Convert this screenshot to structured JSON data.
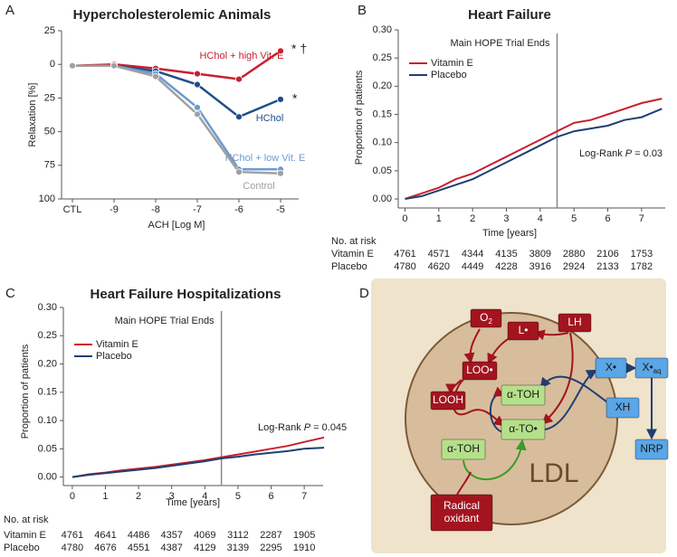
{
  "chart_data": [
    {
      "type": "line",
      "panel_label": "A",
      "title": "Hypercholesterolemic Animals",
      "x_label": "ACH [Log M]",
      "y_label": "Relaxation [%]",
      "categories": [
        "CTL",
        "-9",
        "-8",
        "-7",
        "-6",
        "-5"
      ],
      "ylim": [
        -25,
        100
      ],
      "y_inverted": true,
      "yticks": [
        {
          "value": -25,
          "label": "25"
        },
        0,
        25,
        50,
        75,
        100
      ],
      "markers": true,
      "series": [
        {
          "name": "HChol + high Vit. E",
          "color": "#c8202f",
          "values": [
            1,
            0,
            3,
            7,
            11,
            -10
          ]
        },
        {
          "name": "HChol",
          "color": "#1f4e8c",
          "values": [
            1,
            1,
            5,
            15,
            39,
            26
          ]
        },
        {
          "name": "HChol + low Vit. E",
          "color": "#6b9bd2",
          "values": [
            1,
            1,
            7,
            32,
            78,
            78
          ]
        },
        {
          "name": "Control",
          "color": "#a0a0a0",
          "values": [
            1,
            1,
            9,
            37,
            80,
            81
          ]
        }
      ],
      "annotations": [
        {
          "text": "* †"
        },
        {
          "text": "*"
        }
      ]
    },
    {
      "type": "line",
      "panel_label": "B",
      "title": "Heart Failure",
      "x_label": "Time [years]",
      "y_label": "Proportion of patients",
      "x": [
        0,
        0.5,
        1,
        1.5,
        2,
        2.5,
        3,
        3.5,
        4,
        4.5,
        5,
        5.5,
        6,
        6.5,
        7,
        7.6
      ],
      "xlim": [
        -0.2,
        7.7
      ],
      "xticks": [
        0,
        1,
        2,
        3,
        4,
        5,
        6,
        7
      ],
      "ylim": [
        -0.016,
        0.3
      ],
      "yticks": [
        {
          "value": 0,
          "label": "0.00"
        },
        0.05,
        {
          "value": 0.1,
          "label": "0.10"
        },
        0.15,
        {
          "value": 0.2,
          "label": "0.20"
        },
        0.25,
        {
          "value": 0.3,
          "label": "0.30"
        }
      ],
      "legend": "upper left",
      "series": [
        {
          "name": "Vitamin E",
          "color": "#c8202f",
          "values": [
            0,
            0.01,
            0.02,
            0.035,
            0.045,
            0.06,
            0.075,
            0.09,
            0.105,
            0.12,
            0.135,
            0.14,
            0.15,
            0.16,
            0.17,
            0.178
          ]
        },
        {
          "name": "Placebo",
          "color": "#1f3f73",
          "values": [
            0,
            0.005,
            0.015,
            0.025,
            0.035,
            0.05,
            0.065,
            0.08,
            0.095,
            0.11,
            0.12,
            0.125,
            0.13,
            0.14,
            0.145,
            0.16
          ]
        }
      ],
      "annotations": [
        {
          "text": "Main HOPE Trial Ends",
          "x": 4.5
        }
      ],
      "log_rank": {
        "prefix": "Log-Rank ",
        "italic": "P",
        "suffix": " = 0.03"
      },
      "risk_table": {
        "title": "No. at risk",
        "rows": [
          {
            "label": "Vitamin E",
            "values": [
              4761,
              4571,
              4344,
              4135,
              3809,
              2880,
              2106,
              1753
            ]
          },
          {
            "label": "Placebo",
            "values": [
              4780,
              4620,
              4449,
              4228,
              3916,
              2924,
              2133,
              1782
            ]
          }
        ]
      }
    },
    {
      "type": "line",
      "panel_label": "C",
      "title": "Heart Failure Hospitalizations",
      "x_label": "Time [years]",
      "y_label": "Proportion of patients",
      "x": [
        0,
        0.5,
        1,
        1.5,
        2,
        2.5,
        3,
        3.5,
        4,
        4.5,
        5,
        5.5,
        6,
        6.5,
        7,
        7.6
      ],
      "xlim": [
        -0.27,
        7.57
      ],
      "xticks": [
        0,
        1,
        2,
        3,
        4,
        5,
        6,
        7
      ],
      "ylim": [
        -0.015,
        0.3
      ],
      "yticks": [
        {
          "value": 0,
          "label": "0.00"
        },
        0.05,
        {
          "value": 0.1,
          "label": "0.10"
        },
        0.15,
        {
          "value": 0.2,
          "label": "0.20"
        },
        0.25,
        {
          "value": 0.3,
          "label": "0.30"
        }
      ],
      "legend": "upper left",
      "series": [
        {
          "name": "Vitamin E",
          "color": "#c8202f",
          "values": [
            0,
            0.005,
            0.008,
            0.012,
            0.015,
            0.018,
            0.022,
            0.026,
            0.03,
            0.035,
            0.04,
            0.045,
            0.05,
            0.055,
            0.062,
            0.07
          ]
        },
        {
          "name": "Placebo",
          "color": "#1f3f73",
          "values": [
            0,
            0.004,
            0.007,
            0.01,
            0.013,
            0.016,
            0.02,
            0.024,
            0.028,
            0.033,
            0.036,
            0.04,
            0.043,
            0.046,
            0.05,
            0.052
          ]
        }
      ],
      "annotations": [
        {
          "text": "Main HOPE Trial Ends",
          "x": 4.5
        }
      ],
      "log_rank": {
        "prefix": "Log-Rank ",
        "italic": "P",
        "suffix": " = 0.045"
      },
      "risk_table": {
        "title": "No. at risk",
        "rows": [
          {
            "label": "Vitamin E",
            "values": [
              4761,
              4641,
              4486,
              4357,
              4069,
              3112,
              2287,
              1905
            ]
          },
          {
            "label": "Placebo",
            "values": [
              4780,
              4676,
              4551,
              4387,
              4129,
              3139,
              2295,
              1910
            ]
          }
        ]
      }
    }
  ],
  "diagram": {
    "panel_label": "D",
    "label": "LDL",
    "nodes": [
      {
        "label": "O",
        "sub": "2",
        "color": "#a3141f"
      },
      {
        "label": "L•",
        "color": "#a3141f"
      },
      {
        "label": "LH",
        "color": "#a3141f"
      },
      {
        "label": "LOO•",
        "color": "#a3141f"
      },
      {
        "label": "LOOH",
        "color": "#a3141f"
      },
      {
        "label": "α-TOH",
        "color": "#b5e08a"
      },
      {
        "label": "α-TO•",
        "color": "#b5e08a"
      },
      {
        "label": "α-TOH",
        "color": "#b5e08a"
      },
      {
        "lines": [
          "Radical",
          "oxidant"
        ],
        "color": "#a3141f"
      },
      {
        "label": "X•",
        "color": "#5aa6e6"
      },
      {
        "label": "X•",
        "sub": "aq",
        "color": "#5aa6e6"
      },
      {
        "label": "XH",
        "color": "#5aa6e6"
      },
      {
        "label": "NRP",
        "color": "#5aa6e6"
      }
    ]
  }
}
